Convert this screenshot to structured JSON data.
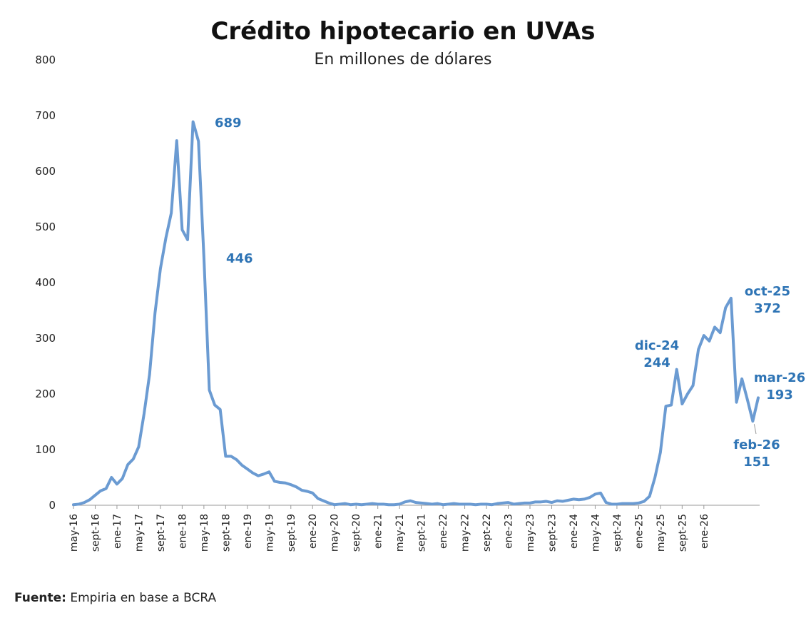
{
  "chart_data": {
    "type": "line",
    "title": "Crédito hipotecario en UVAs",
    "subtitle": "En millones de dólares",
    "xlabel": "",
    "ylabel": "",
    "ylim": [
      0,
      800
    ],
    "yticks": [
      "0",
      "100",
      "200",
      "300",
      "400",
      "500",
      "600",
      "700",
      "800"
    ],
    "grid": false,
    "legend": "none",
    "color": "#6b9bd2",
    "x_tick_labels": [
      "may-16",
      "sept-16",
      "ene-17",
      "may-17",
      "sept-17",
      "ene-18",
      "may-18",
      "sept-18",
      "ene-19",
      "may-19",
      "sept-19",
      "ene-20",
      "may-20",
      "sept-20",
      "ene-21",
      "may-21",
      "sept-21",
      "ene-22",
      "may-22",
      "sept-22",
      "ene-23",
      "may-23",
      "sept-23",
      "ene-24",
      "may-24",
      "sept-24",
      "ene-25",
      "may-25",
      "sept-25",
      "ene-26"
    ],
    "start_month": "may-16",
    "series": [
      {
        "name": "Crédito hipotecario en UVAs",
        "values": [
          1,
          2,
          5,
          10,
          18,
          26,
          30,
          50,
          38,
          48,
          73,
          83,
          105,
          165,
          235,
          345,
          425,
          480,
          525,
          655,
          495,
          477,
          689,
          654,
          446,
          207,
          180,
          172,
          88,
          88,
          82,
          72,
          65,
          58,
          53,
          56,
          60,
          43,
          41,
          40,
          37,
          33,
          27,
          25,
          22,
          12,
          8,
          4,
          1,
          2,
          3,
          1,
          2,
          1,
          2,
          3,
          2,
          2,
          1,
          1,
          2,
          6,
          8,
          5,
          4,
          3,
          2,
          3,
          1,
          2,
          3,
          2,
          2,
          2,
          1,
          2,
          2,
          1,
          3,
          4,
          5,
          2,
          3,
          4,
          4,
          6,
          6,
          7,
          5,
          8,
          7,
          9,
          11,
          10,
          11,
          14,
          20,
          22,
          5,
          2,
          2,
          3,
          3,
          3,
          4,
          7,
          16,
          50,
          95,
          178,
          180,
          244,
          182,
          200,
          215,
          280,
          305,
          295,
          320,
          310,
          355,
          372,
          185,
          227,
          190,
          151,
          193
        ]
      }
    ],
    "annotations": [
      {
        "text": "689",
        "month": "feb-18"
      },
      {
        "text": "446",
        "month": "abr-18"
      },
      {
        "text": "dic-24",
        "value_label": "244",
        "month": "dic-24"
      },
      {
        "text": "oct-25",
        "value_label": "372",
        "month": "oct-25"
      },
      {
        "text": "mar-26",
        "value_label": "193",
        "month": "mar-26"
      },
      {
        "text": "feb-26",
        "value_label": "151",
        "month": "feb-26"
      }
    ]
  },
  "source": {
    "label": "Fuente:",
    "text": "Empiria en base a BCRA"
  }
}
